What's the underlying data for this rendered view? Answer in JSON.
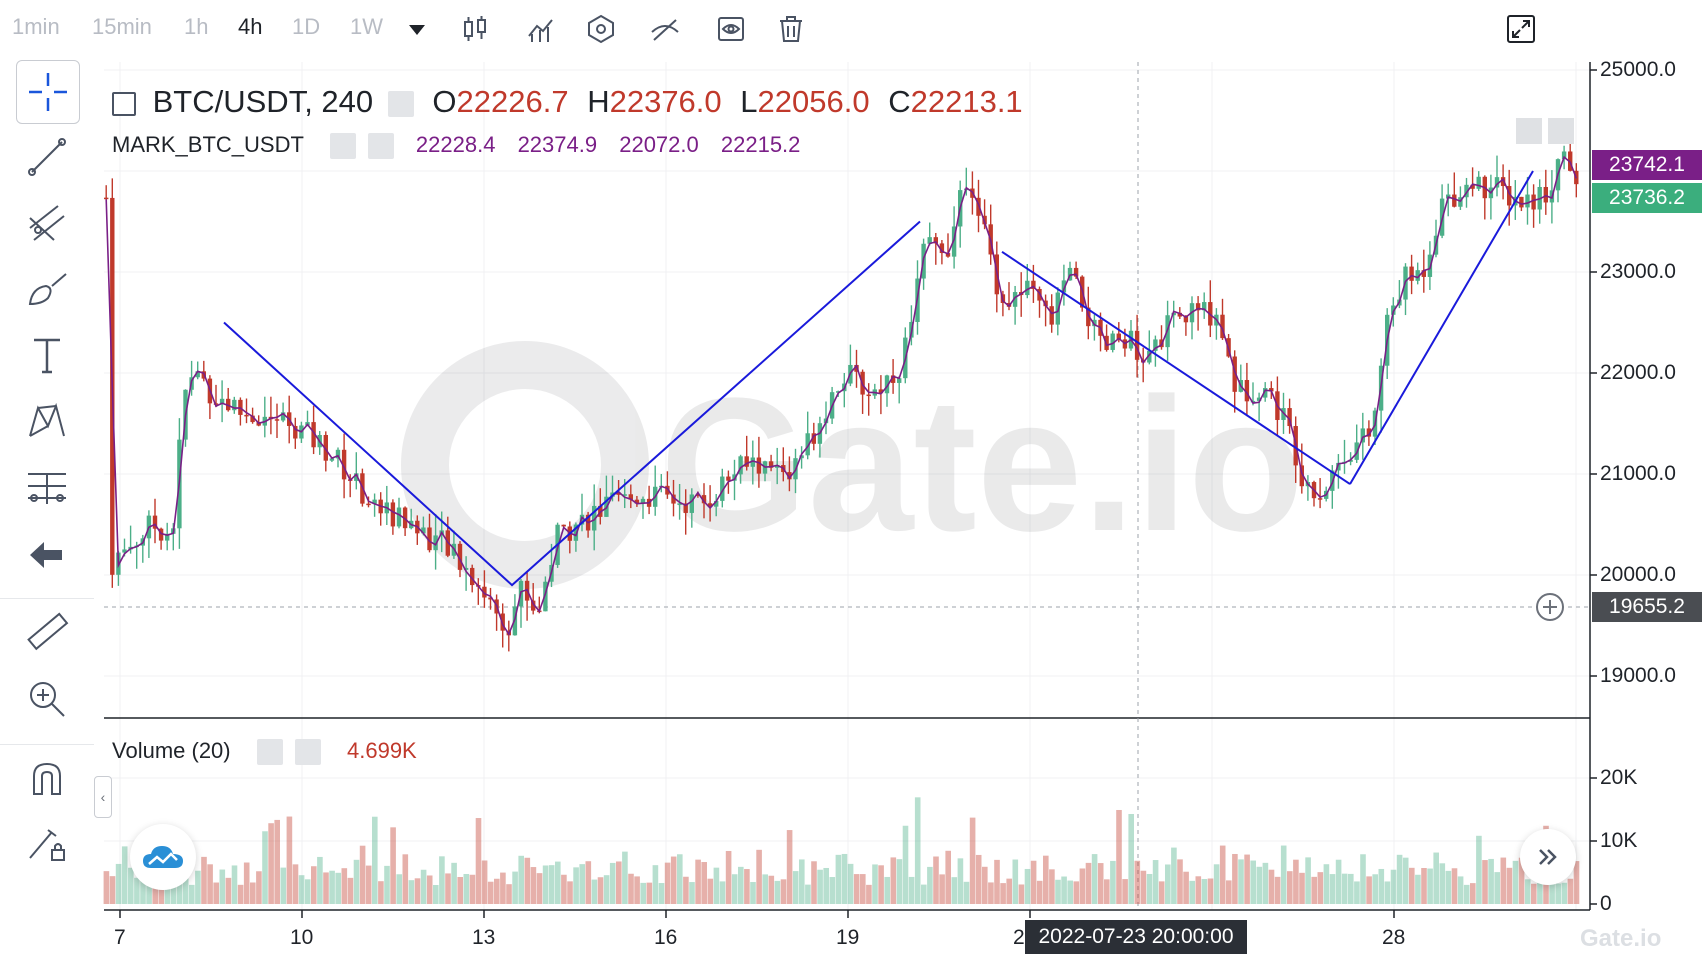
{
  "timeframes": [
    "1min",
    "15min",
    "1h",
    "4h",
    "1D",
    "1W"
  ],
  "active_timeframe": "4h",
  "legend": {
    "symbol": "BTC/USDT, 240",
    "o_label": "O",
    "o_value": "22226.7",
    "h_label": "H",
    "h_value": "22376.0",
    "l_label": "L",
    "l_value": "22056.0",
    "c_label": "C",
    "c_value": "22213.1"
  },
  "mark": {
    "name": "MARK_BTC_USDT",
    "values": [
      "22228.4",
      "22374.9",
      "22072.0",
      "22215.2"
    ]
  },
  "volume": {
    "name": "Volume (20)",
    "value": "4.699K"
  },
  "price_axis": [
    "25000.0",
    "23000.0",
    "22000.0",
    "21000.0",
    "20000.0",
    "19000.0"
  ],
  "volume_axis": [
    "20K",
    "10K",
    "0"
  ],
  "price_tags": {
    "mark_price": "23742.1",
    "last_price": "23736.2",
    "crosshair_price": "19655.2"
  },
  "time_axis": [
    "7",
    "10",
    "13",
    "16",
    "19",
    "2",
    "28"
  ],
  "crosshair_time": "2022-07-23 20:00:00",
  "watermark": "Gate.io",
  "footer_logo": "Gate.io",
  "colors": {
    "up": "#4caf88",
    "down": "#c0392b",
    "trendline": "#1a1adb",
    "mark_line": "#7a1f87",
    "mark_tag": "#7a1f87",
    "last_tag": "#3bae7d",
    "crosshair_tag": "#4a4d52"
  },
  "chart_data": {
    "type": "candlestick",
    "symbol": "BTC/USDT",
    "interval": "4h",
    "ylim": [
      18600,
      25200
    ],
    "swing_points": [
      {
        "x": "Jul 8",
        "y": 22500
      },
      {
        "x": "Jul 13",
        "y": 19900
      },
      {
        "x": "Jul 20",
        "y": 23500
      },
      {
        "x": "Jul 22",
        "y": 23200
      },
      {
        "x": "Jul 26",
        "y": 20900
      },
      {
        "x": "Jul 30",
        "y": 24000
      }
    ]
  }
}
